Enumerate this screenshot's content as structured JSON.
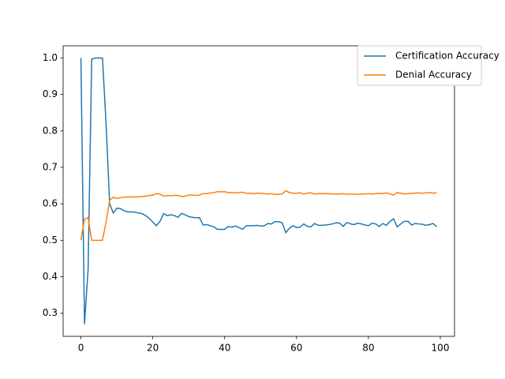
{
  "chart_data": {
    "type": "line",
    "x": [
      0,
      1,
      2,
      3,
      4,
      5,
      6,
      7,
      8,
      9,
      10,
      11,
      12,
      13,
      14,
      15,
      16,
      17,
      18,
      19,
      20,
      21,
      22,
      23,
      24,
      25,
      26,
      27,
      28,
      29,
      30,
      31,
      32,
      33,
      34,
      35,
      36,
      37,
      38,
      39,
      40,
      41,
      42,
      43,
      44,
      45,
      46,
      47,
      48,
      49,
      50,
      51,
      52,
      53,
      54,
      55,
      56,
      57,
      58,
      59,
      60,
      61,
      62,
      63,
      64,
      65,
      66,
      67,
      68,
      69,
      70,
      71,
      72,
      73,
      74,
      75,
      76,
      77,
      78,
      79,
      80,
      81,
      82,
      83,
      84,
      85,
      86,
      87,
      88,
      89,
      90,
      91,
      92,
      93,
      94,
      95,
      96,
      97,
      98,
      99
    ],
    "series": [
      {
        "name": "Certification Accuracy",
        "color": "#1f77b4",
        "values": [
          1.0,
          0.27,
          0.42,
          0.997,
          1.0,
          1.0,
          1.0,
          0.82,
          0.6,
          0.575,
          0.588,
          0.587,
          0.581,
          0.578,
          0.578,
          0.577,
          0.575,
          0.573,
          0.568,
          0.56,
          0.55,
          0.54,
          0.552,
          0.573,
          0.568,
          0.57,
          0.568,
          0.563,
          0.574,
          0.57,
          0.565,
          0.563,
          0.562,
          0.562,
          0.542,
          0.543,
          0.54,
          0.537,
          0.53,
          0.53,
          0.53,
          0.538,
          0.536,
          0.539,
          0.535,
          0.53,
          0.54,
          0.54,
          0.54,
          0.541,
          0.539,
          0.54,
          0.546,
          0.545,
          0.551,
          0.551,
          0.548,
          0.521,
          0.533,
          0.54,
          0.535,
          0.536,
          0.545,
          0.538,
          0.537,
          0.546,
          0.541,
          0.541,
          0.542,
          0.543,
          0.545,
          0.548,
          0.547,
          0.538,
          0.549,
          0.545,
          0.543,
          0.547,
          0.545,
          0.542,
          0.54,
          0.547,
          0.545,
          0.538,
          0.546,
          0.541,
          0.552,
          0.559,
          0.537,
          0.545,
          0.552,
          0.552,
          0.542,
          0.546,
          0.545,
          0.544,
          0.541,
          0.543,
          0.546,
          0.537
        ]
      },
      {
        "name": "Denial Accuracy",
        "color": "#ff7f0e",
        "values": [
          0.5,
          0.558,
          0.562,
          0.5,
          0.5,
          0.5,
          0.5,
          0.55,
          0.61,
          0.618,
          0.615,
          0.617,
          0.618,
          0.619,
          0.619,
          0.619,
          0.619,
          0.62,
          0.621,
          0.623,
          0.624,
          0.628,
          0.627,
          0.621,
          0.623,
          0.622,
          0.623,
          0.623,
          0.62,
          0.621,
          0.624,
          0.624,
          0.623,
          0.624,
          0.628,
          0.628,
          0.63,
          0.631,
          0.633,
          0.633,
          0.633,
          0.631,
          0.631,
          0.63,
          0.631,
          0.632,
          0.629,
          0.629,
          0.628,
          0.629,
          0.629,
          0.628,
          0.627,
          0.628,
          0.626,
          0.626,
          0.627,
          0.636,
          0.631,
          0.629,
          0.629,
          0.63,
          0.627,
          0.629,
          0.63,
          0.627,
          0.628,
          0.628,
          0.628,
          0.628,
          0.627,
          0.627,
          0.627,
          0.628,
          0.626,
          0.627,
          0.627,
          0.626,
          0.627,
          0.627,
          0.628,
          0.627,
          0.628,
          0.629,
          0.628,
          0.63,
          0.627,
          0.624,
          0.631,
          0.629,
          0.627,
          0.628,
          0.629,
          0.629,
          0.63,
          0.629,
          0.63,
          0.631,
          0.629,
          0.631
        ]
      }
    ],
    "xlim": [
      -4.95,
      103.95
    ],
    "xticks": [
      0,
      20,
      40,
      60,
      80,
      100
    ],
    "ylim": [
      0.2365,
      1.0335
    ],
    "yticks": [
      0.3,
      0.4,
      0.5,
      0.6,
      0.7,
      0.8,
      0.9,
      {
        "value": 1,
        "label": "1.0"
      }
    ],
    "legend": "upper right"
  }
}
